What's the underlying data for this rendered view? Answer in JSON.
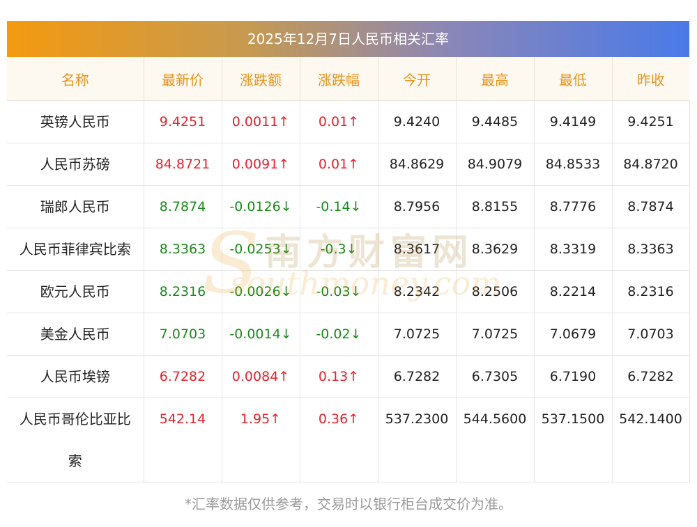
{
  "title": "2025年12月7日人民币相关汇率",
  "headers": [
    "名称",
    "最新价",
    "涨跌额",
    "涨跌幅",
    "今开",
    "最高",
    "最低",
    "昨收"
  ],
  "rows": [
    {
      "name": "英镑人民币",
      "latest": "9.4251",
      "change": "0.0011↑",
      "pct": "0.01↑",
      "open": "9.4240",
      "high": "9.4485",
      "low": "9.4149",
      "prev": "9.4251",
      "dir": "up"
    },
    {
      "name": "人民币苏磅",
      "latest": "84.8721",
      "change": "0.0091↑",
      "pct": "0.01↑",
      "open": "84.8629",
      "high": "84.9079",
      "low": "84.8533",
      "prev": "84.8720",
      "dir": "up"
    },
    {
      "name": "瑞郎人民币",
      "latest": "8.7874",
      "change": "-0.0126↓",
      "pct": "-0.14↓",
      "open": "8.7956",
      "high": "8.8155",
      "low": "8.7776",
      "prev": "8.7874",
      "dir": "down"
    },
    {
      "name": "人民币菲律宾比索",
      "latest": "8.3363",
      "change": "-0.0253↓",
      "pct": "-0.3↓",
      "open": "8.3617",
      "high": "8.3629",
      "low": "8.3319",
      "prev": "8.3363",
      "dir": "down"
    },
    {
      "name": "欧元人民币",
      "latest": "8.2316",
      "change": "-0.0026↓",
      "pct": "-0.03↓",
      "open": "8.2342",
      "high": "8.2506",
      "low": "8.2214",
      "prev": "8.2316",
      "dir": "down"
    },
    {
      "name": "美金人民币",
      "latest": "7.0703",
      "change": "-0.0014↓",
      "pct": "-0.02↓",
      "open": "7.0725",
      "high": "7.0725",
      "low": "7.0679",
      "prev": "7.0703",
      "dir": "down"
    },
    {
      "name": "人民币埃镑",
      "latest": "6.7282",
      "change": "0.0084↑",
      "pct": "0.13↑",
      "open": "6.7282",
      "high": "6.7305",
      "low": "6.7190",
      "prev": "6.7282",
      "dir": "up"
    },
    {
      "name": "人民币哥伦比亚比索",
      "latest": "542.14",
      "change": "1.95↑",
      "pct": "0.36↑",
      "open": "537.2300",
      "high": "544.5600",
      "low": "537.1500",
      "prev": "542.1400",
      "dir": "up"
    }
  ],
  "footer": "*汇率数据仅供参考，交易时以银行柜台成交价为准。",
  "watermark": {
    "cn": "南方财富网",
    "en": "southmoney.com"
  },
  "colors": {
    "up": "#e6212a",
    "down": "#1a8a1a",
    "header_text": "#e8941c"
  }
}
